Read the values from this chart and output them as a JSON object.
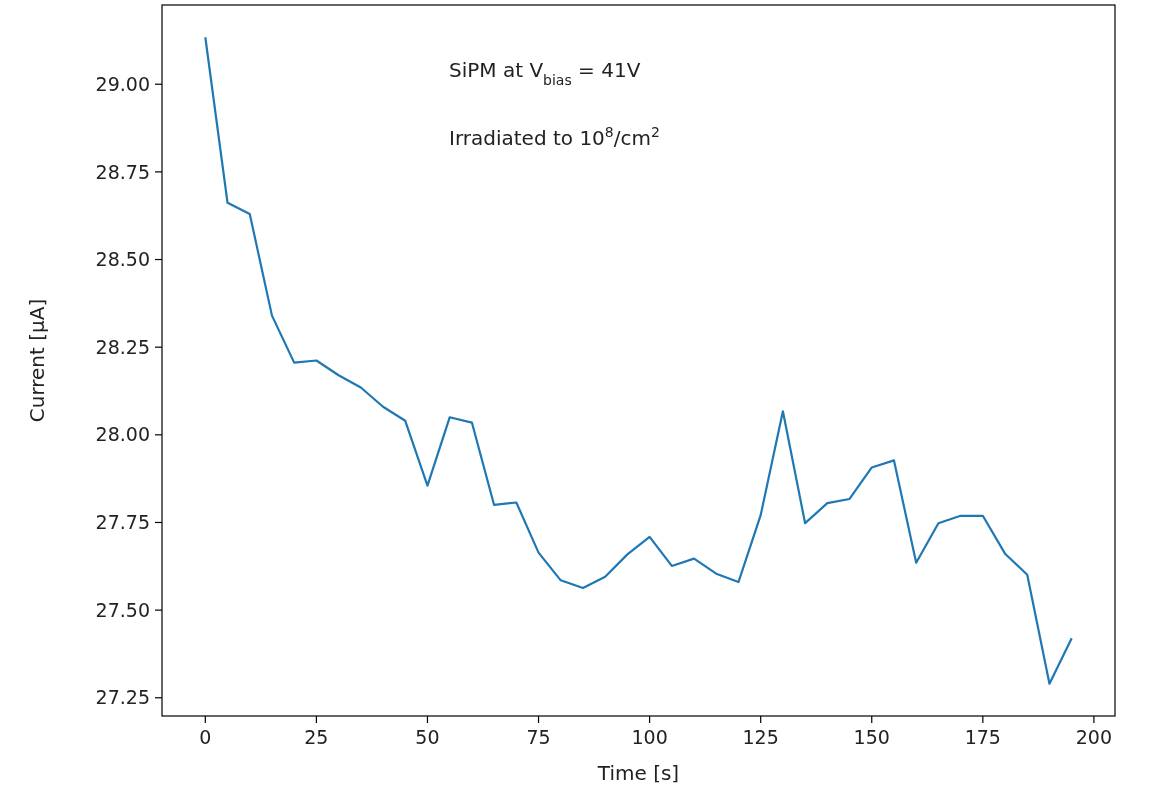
{
  "chart_data": {
    "type": "line",
    "xlabel": "Time [s]",
    "ylabel": "Current [μA]",
    "annotations": [
      "SiPM at V$_{bias}$ = 41V",
      "Irradiated to 10$^{8}$/cm$^{2}$"
    ],
    "x": [
      0,
      5,
      10,
      15,
      20,
      25,
      30,
      35,
      40,
      45,
      50,
      55,
      60,
      65,
      70,
      75,
      80,
      85,
      90,
      95,
      100,
      105,
      110,
      115,
      120,
      125,
      130,
      135,
      140,
      145,
      150,
      155,
      160,
      165,
      170,
      175,
      180,
      185,
      190,
      195
    ],
    "series": [
      {
        "color": "#1f77b4",
        "values": [
          29.134,
          28.662,
          28.63,
          28.34,
          28.206,
          28.212,
          28.17,
          28.135,
          28.08,
          28.04,
          27.855,
          28.05,
          28.035,
          27.8,
          27.807,
          27.664,
          27.585,
          27.563,
          27.595,
          27.659,
          27.709,
          27.626,
          27.647,
          27.604,
          27.58,
          27.771,
          28.067,
          27.748,
          27.805,
          27.817,
          27.907,
          27.927,
          27.635,
          27.748,
          27.769,
          27.769,
          27.661,
          27.601,
          27.29,
          27.42
        ]
      }
    ],
    "xlim": [
      -9.75,
      204.75
    ],
    "ylim": [
      27.198,
      29.226
    ],
    "xticks": [
      0,
      25,
      50,
      75,
      100,
      125,
      150,
      175,
      200
    ],
    "yticks": [
      {
        "value": 27.25,
        "label": "27.25"
      },
      {
        "value": 27.5,
        "label": "27.50"
      },
      {
        "value": 27.75,
        "label": "27.75"
      },
      {
        "value": 28,
        "label": "28.00"
      },
      {
        "value": 28.25,
        "label": "28.25"
      },
      {
        "value": 28.5,
        "label": "28.50"
      },
      {
        "value": 28.75,
        "label": "28.75"
      },
      {
        "value": 29,
        "label": "29.00"
      }
    ],
    "grid": false,
    "marker": "none",
    "line_style": "solid"
  }
}
